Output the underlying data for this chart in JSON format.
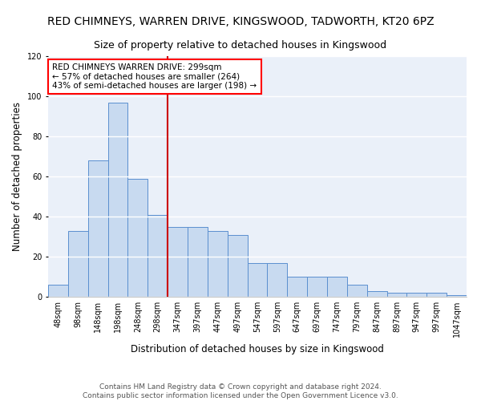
{
  "title": "RED CHIMNEYS, WARREN DRIVE, KINGSWOOD, TADWORTH, KT20 6PZ",
  "subtitle": "Size of property relative to detached houses in Kingswood",
  "xlabel": "Distribution of detached houses by size in Kingswood",
  "ylabel": "Number of detached properties",
  "bar_color": "#c8daf0",
  "bar_edge_color": "#5b8fcf",
  "background_color": "#eaf0f9",
  "grid_color": "white",
  "categories": [
    "48sqm",
    "98sqm",
    "148sqm",
    "198sqm",
    "248sqm",
    "298sqm",
    "347sqm",
    "397sqm",
    "447sqm",
    "497sqm",
    "547sqm",
    "597sqm",
    "647sqm",
    "697sqm",
    "747sqm",
    "797sqm",
    "847sqm",
    "897sqm",
    "947sqm",
    "997sqm",
    "1047sqm"
  ],
  "values": [
    6,
    33,
    68,
    97,
    59,
    41,
    35,
    35,
    33,
    31,
    17,
    17,
    10,
    10,
    10,
    6,
    3,
    2,
    2,
    2,
    1
  ],
  "ylim": [
    0,
    120
  ],
  "yticks": [
    0,
    20,
    40,
    60,
    80,
    100,
    120
  ],
  "vline_x": 5.5,
  "vline_color": "#cc0000",
  "annotation_text": "RED CHIMNEYS WARREN DRIVE: 299sqm\n← 57% of detached houses are smaller (264)\n43% of semi-detached houses are larger (198) →",
  "footer_text": "Contains HM Land Registry data © Crown copyright and database right 2024.\nContains public sector information licensed under the Open Government Licence v3.0.",
  "title_fontsize": 10,
  "subtitle_fontsize": 9,
  "xlabel_fontsize": 8.5,
  "ylabel_fontsize": 8.5,
  "tick_fontsize": 7,
  "footer_fontsize": 6.5,
  "annotation_fontsize": 7.5
}
